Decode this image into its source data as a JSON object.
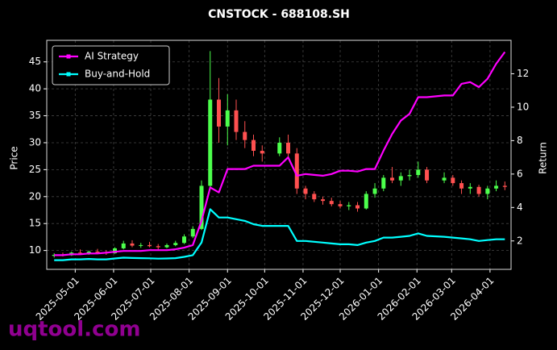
{
  "chart_data": {
    "type": "candlestick",
    "title": "CNSTOCK - 688108.SH",
    "y_label": "Price",
    "y2_label": "Return",
    "watermark": "uqtool.com",
    "up_color": "#4cff4c",
    "down_color": "#ff5050",
    "grid": true,
    "legend": "upper-left",
    "x": [
      "2025-04-14",
      "2025-04-21",
      "2025-04-28",
      "2025-05-05",
      "2025-05-12",
      "2025-05-19",
      "2025-05-26",
      "2025-06-02",
      "2025-06-09",
      "2025-06-16",
      "2025-06-23",
      "2025-06-30",
      "2025-07-07",
      "2025-07-14",
      "2025-07-21",
      "2025-07-28",
      "2025-08-04",
      "2025-08-11",
      "2025-08-18",
      "2025-08-25",
      "2025-09-01",
      "2025-09-08",
      "2025-09-15",
      "2025-09-22",
      "2025-09-29",
      "2025-10-13",
      "2025-10-20",
      "2025-10-27",
      "2025-11-03",
      "2025-11-10",
      "2025-11-17",
      "2025-11-24",
      "2025-12-01",
      "2025-12-08",
      "2025-12-15",
      "2025-12-22",
      "2025-12-29",
      "2026-01-05",
      "2026-01-12",
      "2026-01-19",
      "2026-01-26",
      "2026-02-02",
      "2026-02-09",
      "2026-02-23",
      "2026-03-02",
      "2026-03-09",
      "2026-03-16",
      "2026-03-23",
      "2026-03-30",
      "2026-04-06",
      "2026-04-13"
    ],
    "open": [
      9.0,
      9.2,
      9.1,
      9.6,
      9.5,
      9.8,
      9.6,
      9.5,
      10.4,
      11.3,
      10.9,
      11.0,
      10.8,
      10.6,
      11.0,
      11.4,
      12.6,
      14.0,
      22.0,
      38.0,
      33.0,
      36.0,
      32.0,
      30.5,
      28.5,
      28.0,
      30.0,
      28.0,
      21.5,
      20.5,
      19.5,
      19.2,
      18.6,
      18.2,
      18.4,
      17.8,
      20.5,
      21.5,
      23.5,
      23.0,
      23.8,
      24.0,
      25.0,
      23.0,
      23.5,
      22.5,
      21.5,
      21.8,
      20.5,
      21.5,
      22.0
    ],
    "high": [
      9.5,
      9.6,
      9.8,
      10.2,
      10.0,
      10.3,
      10.0,
      10.6,
      11.8,
      11.9,
      11.4,
      11.6,
      11.2,
      11.3,
      11.8,
      13.0,
      14.5,
      23.0,
      47.0,
      42.0,
      39.0,
      38.0,
      34.0,
      31.5,
      29.5,
      31.0,
      31.5,
      29.0,
      22.0,
      21.0,
      20.0,
      19.8,
      19.2,
      19.0,
      19.0,
      21.0,
      22.5,
      24.0,
      25.5,
      24.5,
      25.0,
      26.5,
      25.5,
      24.5,
      24.0,
      23.0,
      22.5,
      22.2,
      22.0,
      23.0,
      22.8
    ],
    "low": [
      8.7,
      8.9,
      9.0,
      9.3,
      9.2,
      9.4,
      9.2,
      9.4,
      10.2,
      10.6,
      10.5,
      10.6,
      10.2,
      10.4,
      10.8,
      11.2,
      12.3,
      13.8,
      21.5,
      30.0,
      29.5,
      30.5,
      29.0,
      27.5,
      26.5,
      27.5,
      27.0,
      20.5,
      19.5,
      19.0,
      18.5,
      18.2,
      17.8,
      17.5,
      17.2,
      17.6,
      19.8,
      21.0,
      22.5,
      22.0,
      23.0,
      23.5,
      22.5,
      22.5,
      22.0,
      20.5,
      20.5,
      20.0,
      19.5,
      21.0,
      21.2
    ],
    "close": [
      9.2,
      9.1,
      9.6,
      9.5,
      9.8,
      9.6,
      9.5,
      10.4,
      11.3,
      10.9,
      11.0,
      10.8,
      10.6,
      11.0,
      11.4,
      12.6,
      14.0,
      22.0,
      38.0,
      33.0,
      36.0,
      32.0,
      30.5,
      28.5,
      28.0,
      30.0,
      28.0,
      21.5,
      20.5,
      19.5,
      19.2,
      18.6,
      18.2,
      18.4,
      17.8,
      20.5,
      21.5,
      23.5,
      23.0,
      23.8,
      24.0,
      25.0,
      23.0,
      23.5,
      22.5,
      21.5,
      21.8,
      20.5,
      21.5,
      22.0,
      21.8
    ],
    "series": [
      {
        "name": "AI Strategy",
        "color": "#ff00ff",
        "axis": "y2",
        "values": [
          1.15,
          1.15,
          1.2,
          1.2,
          1.25,
          1.25,
          1.3,
          1.35,
          1.4,
          1.4,
          1.4,
          1.45,
          1.45,
          1.45,
          1.5,
          1.6,
          1.75,
          3.2,
          5.2,
          4.9,
          6.3,
          6.3,
          6.3,
          6.5,
          6.5,
          6.5,
          7.0,
          5.9,
          6.0,
          5.95,
          5.9,
          6.0,
          6.2,
          6.2,
          6.15,
          6.3,
          6.3,
          7.4,
          8.4,
          9.2,
          9.6,
          10.6,
          10.6,
          10.7,
          10.7,
          11.4,
          11.5,
          11.2,
          11.7,
          12.6,
          13.3
        ]
      },
      {
        "name": "Buy-and-Hold",
        "color": "#00ffff",
        "axis": "y2",
        "values": [
          0.85,
          0.85,
          0.9,
          0.9,
          0.92,
          0.9,
          0.9,
          0.95,
          1.0,
          0.98,
          0.97,
          0.96,
          0.94,
          0.95,
          0.97,
          1.05,
          1.15,
          1.9,
          3.9,
          3.4,
          3.4,
          3.3,
          3.2,
          3.0,
          2.9,
          2.9,
          2.9,
          2.0,
          2.0,
          1.95,
          1.9,
          1.85,
          1.8,
          1.8,
          1.75,
          1.9,
          2.0,
          2.2,
          2.2,
          2.25,
          2.3,
          2.45,
          2.3,
          2.25,
          2.2,
          2.15,
          2.1,
          2.0,
          2.05,
          2.1,
          2.1
        ]
      }
    ],
    "xlim": [
      "2025-04-08",
      "2026-04-18"
    ],
    "xticks": [
      "2025-05-01",
      "2025-06-01",
      "2025-07-01",
      "2025-08-01",
      "2025-09-01",
      "2025-10-01",
      "2025-11-01",
      "2025-12-01",
      "2026-01-01",
      "2026-02-01",
      "2026-03-01",
      "2026-04-01"
    ],
    "ylim": [
      6.5,
      49
    ],
    "yticks": [
      10,
      15,
      20,
      25,
      30,
      35,
      40,
      45
    ],
    "y2lim": [
      0.3,
      14.0
    ],
    "y2ticks": [
      2,
      4,
      6,
      8,
      10,
      12
    ]
  }
}
